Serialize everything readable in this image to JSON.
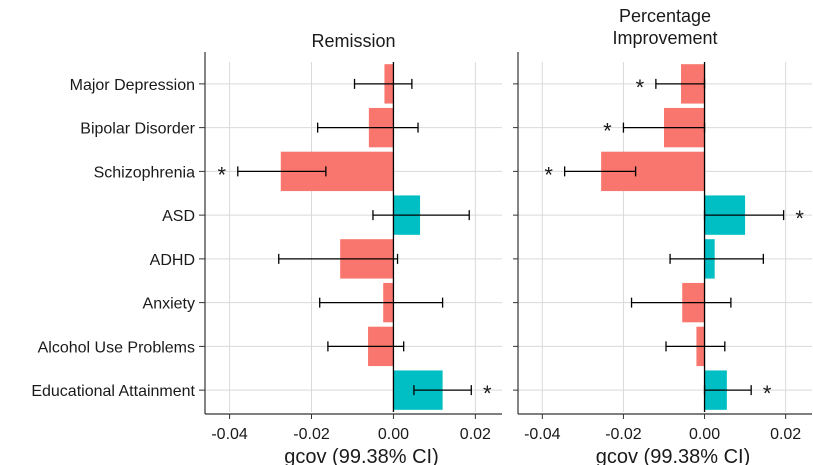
{
  "chart_data": {
    "type": "bar",
    "orientation": "horizontal",
    "categories": [
      "Major Depression",
      "Bipolar Disorder",
      "Schizophrenia",
      "ASD",
      "ADHD",
      "Anxiety",
      "Alcohol Use Problems",
      "Educational Attainment"
    ],
    "xlabel": "gcov (99.38% CI)",
    "xlim": [
      -0.046,
      0.0265
    ],
    "xticks": [
      -0.04,
      -0.02,
      0.0,
      0.02
    ],
    "xtick_labels": [
      "-0.04",
      "-0.02",
      "0.00",
      "0.02"
    ],
    "grid": true,
    "colors": {
      "negative": "#F8766D",
      "positive": "#00BFC4",
      "errorbar": "#000000",
      "grid": "#d9d9d9"
    },
    "panels": [
      {
        "title": "Remission",
        "values": [
          -0.0022,
          -0.006,
          -0.0275,
          0.0065,
          -0.013,
          -0.0025,
          -0.0062,
          0.012
        ],
        "ci_low": [
          -0.0095,
          -0.0185,
          -0.038,
          -0.005,
          -0.028,
          -0.018,
          -0.016,
          0.005
        ],
        "ci_high": [
          0.0045,
          0.006,
          -0.0165,
          0.0185,
          0.001,
          0.012,
          0.0025,
          0.019
        ],
        "significant": [
          false,
          false,
          true,
          false,
          false,
          false,
          false,
          true
        ]
      },
      {
        "title": "Percentage Improvement",
        "values": [
          -0.0058,
          -0.01,
          -0.0255,
          0.01,
          0.0025,
          -0.0055,
          -0.002,
          0.0055
        ],
        "ci_low": [
          -0.012,
          -0.02,
          -0.0345,
          0.0,
          -0.0085,
          -0.018,
          -0.0095,
          0.0
        ],
        "ci_high": [
          0.0,
          0.0,
          -0.017,
          0.0195,
          0.0145,
          0.0065,
          0.005,
          0.0115
        ],
        "significant": [
          true,
          true,
          true,
          true,
          false,
          false,
          false,
          true
        ]
      }
    ]
  }
}
